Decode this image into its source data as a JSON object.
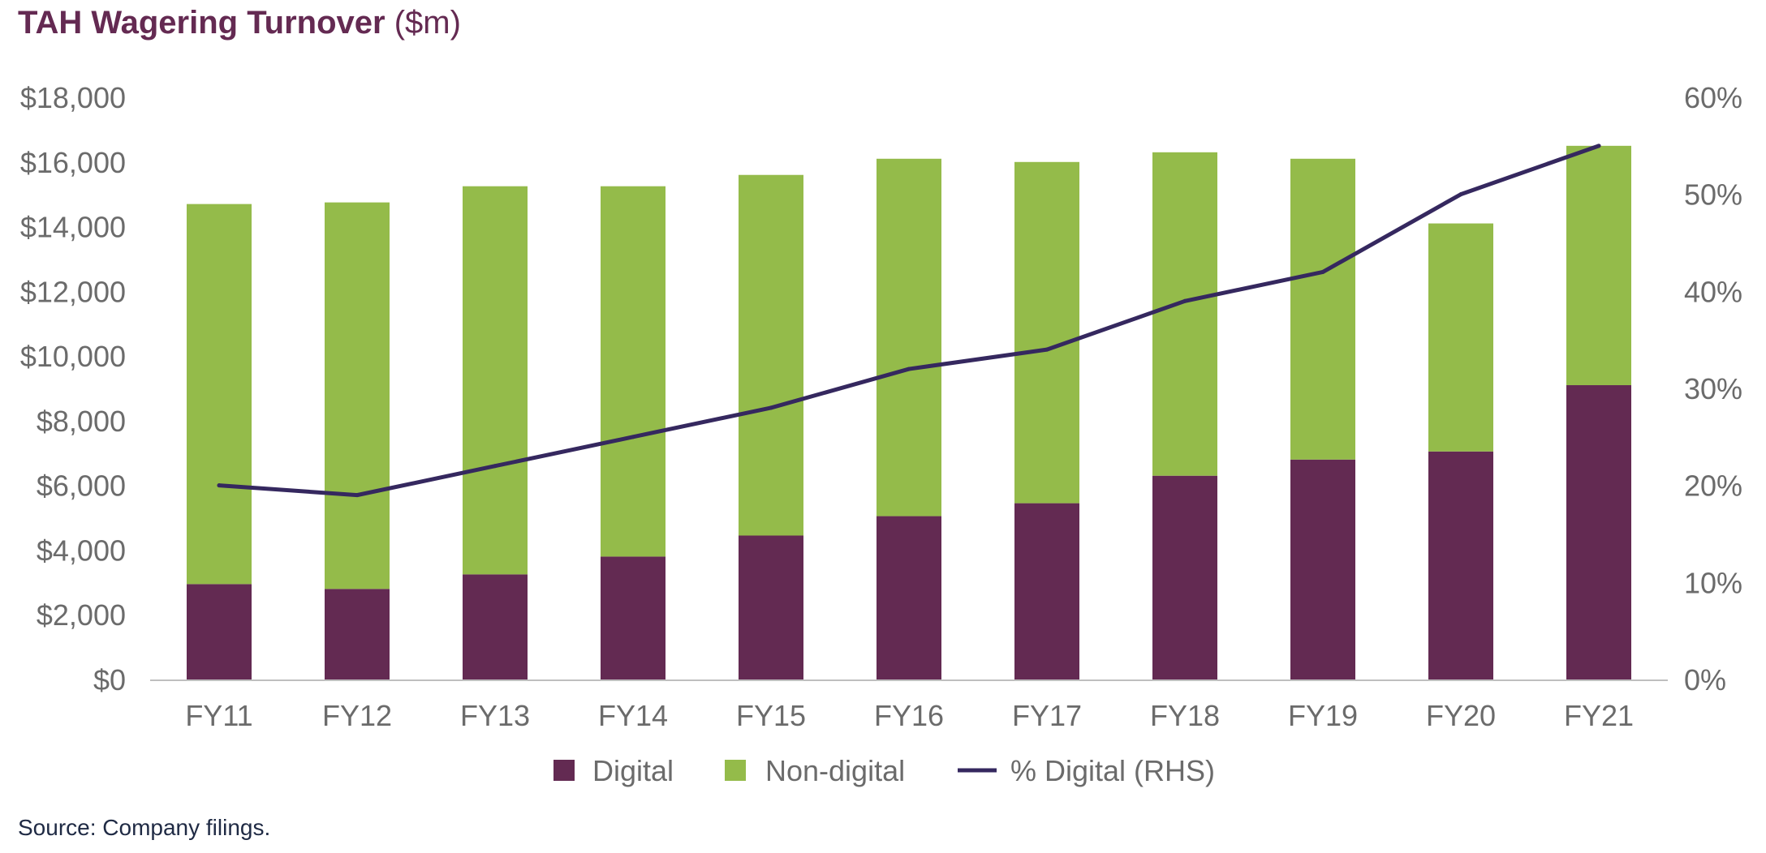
{
  "title_bold": "TAH Wagering Turnover",
  "title_unit": "($m)",
  "source": "Source: Company filings.",
  "colors": {
    "digital": "#632a52",
    "non_digital": "#94bb4a",
    "line": "#35285f",
    "axis": "#bfbfbf",
    "title": "#642a52"
  },
  "chart_data": {
    "type": "bar",
    "stacked": true,
    "categories": [
      "FY11",
      "FY12",
      "FY13",
      "FY14",
      "FY15",
      "FY16",
      "FY17",
      "FY18",
      "FY19",
      "FY20",
      "FY21"
    ],
    "series": [
      {
        "name": "Digital",
        "values": [
          2950,
          2800,
          3250,
          3800,
          4450,
          5050,
          5450,
          6300,
          6800,
          7050,
          9100
        ]
      },
      {
        "name": "Non-digital",
        "values": [
          11750,
          11950,
          12000,
          11450,
          11150,
          11050,
          10550,
          10000,
          9300,
          7050,
          7400
        ]
      }
    ],
    "line_series": {
      "name": "% Digital (RHS)",
      "values": [
        20,
        19,
        22,
        25,
        28,
        32,
        34,
        39,
        42,
        50,
        55
      ]
    },
    "yaxis_left": {
      "min": 0,
      "max": 18000,
      "step": 2000,
      "ticks": [
        "$0",
        "$2,000",
        "$4,000",
        "$6,000",
        "$8,000",
        "$10,000",
        "$12,000",
        "$14,000",
        "$16,000",
        "$18,000"
      ]
    },
    "yaxis_right": {
      "min": 0,
      "max": 60,
      "step": 10,
      "ticks": [
        "0%",
        "10%",
        "20%",
        "30%",
        "40%",
        "50%",
        "60%"
      ]
    },
    "grid": false,
    "legend_position": "bottom-center"
  }
}
